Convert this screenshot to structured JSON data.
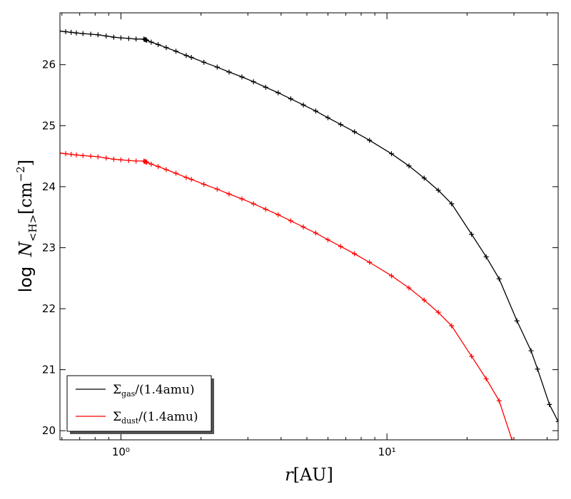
{
  "chart_data": {
    "type": "line",
    "title": "",
    "xlabel": "r[AU]",
    "ylabel": "log N<H>[cm−2]",
    "xscale": "log",
    "xlim": [
      0.59,
      44
    ],
    "ylim": [
      19.85,
      26.85
    ],
    "x_tick_labels": [
      "10⁰",
      "10¹"
    ],
    "x_tick_values": [
      1,
      10
    ],
    "y_ticks": [
      20,
      21,
      22,
      23,
      24,
      25,
      26
    ],
    "grid": false,
    "legend_position": "lower-left",
    "series": [
      {
        "name": "Σgas/(1.4amu)",
        "color": "#000000",
        "marker": "plus",
        "x": [
          0.59,
          0.62,
          0.65,
          0.68,
          0.72,
          0.77,
          0.82,
          0.88,
          0.94,
          1.0,
          1.07,
          1.14,
          1.22,
          1.23,
          1.24,
          1.25,
          1.3,
          1.38,
          1.48,
          1.61,
          1.76,
          1.84,
          2.05,
          2.3,
          2.55,
          2.85,
          3.15,
          3.5,
          3.9,
          4.35,
          4.85,
          5.4,
          6.0,
          6.7,
          7.55,
          8.6,
          10.4,
          12.1,
          13.8,
          15.6,
          17.5,
          20.8,
          23.6,
          26.4,
          30.8,
          34.8,
          36.8,
          40.8,
          44.0
        ],
        "y": [
          26.55,
          26.54,
          26.53,
          26.52,
          26.51,
          26.5,
          26.49,
          26.47,
          26.45,
          26.44,
          26.43,
          26.42,
          26.42,
          26.41,
          26.41,
          26.4,
          26.37,
          26.33,
          26.28,
          26.22,
          26.15,
          26.12,
          26.04,
          25.96,
          25.88,
          25.8,
          25.72,
          25.63,
          25.54,
          25.44,
          25.34,
          25.24,
          25.13,
          25.02,
          24.9,
          24.76,
          24.54,
          24.34,
          24.14,
          23.94,
          23.72,
          23.22,
          22.85,
          22.49,
          21.8,
          21.31,
          21.01,
          20.43,
          20.15
        ]
      },
      {
        "name": "Σdust/(1.4amu)",
        "color": "#ff0000",
        "marker": "plus",
        "x": [
          0.59,
          0.62,
          0.65,
          0.68,
          0.72,
          0.77,
          0.82,
          0.88,
          0.94,
          1.0,
          1.07,
          1.14,
          1.22,
          1.23,
          1.24,
          1.25,
          1.3,
          1.38,
          1.48,
          1.61,
          1.76,
          1.84,
          2.05,
          2.3,
          2.55,
          2.85,
          3.15,
          3.5,
          3.9,
          4.35,
          4.85,
          5.4,
          6.0,
          6.7,
          7.55,
          8.6,
          10.4,
          12.1,
          13.8,
          15.6,
          17.5,
          20.8,
          23.6,
          26.4,
          29.5
        ],
        "y": [
          24.55,
          24.54,
          24.53,
          24.52,
          24.51,
          24.5,
          24.49,
          24.47,
          24.45,
          24.44,
          24.43,
          24.42,
          24.42,
          24.41,
          24.41,
          24.4,
          24.37,
          24.33,
          24.28,
          24.22,
          24.15,
          24.12,
          24.04,
          23.96,
          23.88,
          23.8,
          23.72,
          23.63,
          23.54,
          23.44,
          23.34,
          23.24,
          23.13,
          23.02,
          22.9,
          22.76,
          22.54,
          22.34,
          22.14,
          21.94,
          21.72,
          21.22,
          20.85,
          20.49,
          19.85
        ]
      }
    ]
  },
  "legend": {
    "gas": {
      "main": "Σ",
      "sub": "gas",
      "tail": "/(1.4amu)"
    },
    "dust": {
      "main": "Σ",
      "sub": "dust",
      "tail": "/(1.4amu)"
    }
  },
  "axis_text": {
    "xlabel_italic": "r",
    "xlabel_rest": "[AU]",
    "ylabel_log": "log",
    "ylabel_N": "N",
    "ylabel_sub": "<H>",
    "ylabel_unit": "[cm",
    "ylabel_exp": "−2",
    "ylabel_close": "]"
  }
}
